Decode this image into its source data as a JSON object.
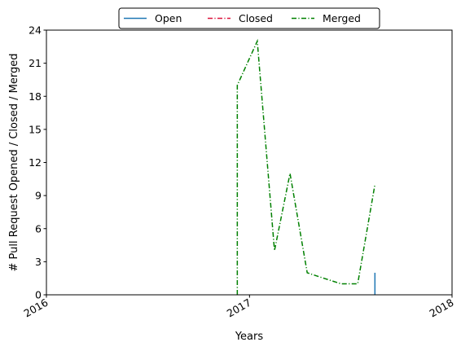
{
  "chart_data": {
    "type": "line",
    "title": "",
    "xlabel": "Years",
    "ylabel": "# Pull Request Opened / Closed / Merged",
    "xlim": [
      "2016-01-01",
      "2018-01-01"
    ],
    "ylim": [
      0,
      24
    ],
    "x_ticks": [
      "2016-01-01",
      "2017-01-01",
      "2018-01-01"
    ],
    "x_tick_labels": [
      "2016",
      "2017",
      "2018"
    ],
    "y_ticks": [
      0,
      3,
      6,
      9,
      12,
      15,
      18,
      21,
      24
    ],
    "y_tick_labels": [
      "0",
      "3",
      "6",
      "9",
      "12",
      "15",
      "18",
      "21",
      "24"
    ],
    "grid": false,
    "legend_position": "top-center",
    "series": [
      {
        "name": "Open",
        "color": "#1f77b4",
        "style": "solid",
        "points": [
          [
            "2017-08-15",
            0
          ],
          [
            "2017-08-15",
            2
          ]
        ]
      },
      {
        "name": "Closed",
        "color": "#dc143c",
        "style": "dashdot",
        "points": []
      },
      {
        "name": "Merged",
        "color": "#008000",
        "style": "dashdot",
        "points": [
          [
            "2016-12-10",
            0
          ],
          [
            "2016-12-10",
            19
          ],
          [
            "2017-01-15",
            23
          ],
          [
            "2017-02-15",
            4
          ],
          [
            "2017-03-15",
            11
          ],
          [
            "2017-04-15",
            2
          ],
          [
            "2017-05-15",
            1.5
          ],
          [
            "2017-06-15",
            1
          ],
          [
            "2017-07-15",
            1
          ],
          [
            "2017-08-15",
            10
          ]
        ]
      }
    ]
  }
}
